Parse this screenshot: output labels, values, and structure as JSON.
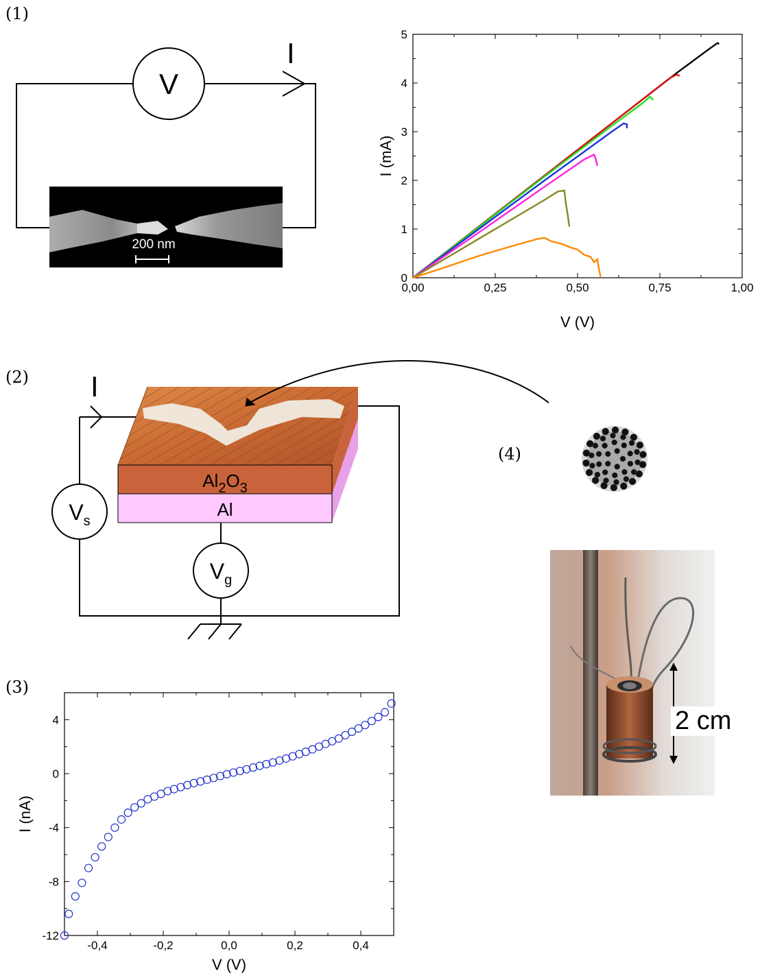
{
  "panel_labels": [
    "(1)",
    "(2)",
    "(3)",
    "(4)"
  ],
  "panel1_circuit": {
    "voltmeter": "V",
    "current": "I",
    "scale_bar": "200 nm"
  },
  "panel2_circuit": {
    "current": "I",
    "oxide": "Al2O3",
    "metal": "Al",
    "source": "Vs",
    "gate": "Vg"
  },
  "panel4": {
    "scale": "2 cm"
  },
  "colors": {
    "photo_bg": "#000000",
    "copper": "#c8633b",
    "al": "#ffc8ff",
    "markers": "#2233cc"
  },
  "chart_data": [
    {
      "type": "line",
      "xlabel": "V (V)",
      "ylabel": "I (mA)",
      "xlim": [
        0,
        1.0
      ],
      "ylim": [
        0,
        5
      ],
      "xticks": [
        "0,00",
        "0,25",
        "0,50",
        "0,75",
        "1,00"
      ],
      "yticks": [
        "0",
        "1",
        "2",
        "3",
        "4",
        "5"
      ],
      "grid": false,
      "series": [
        {
          "color": "#000000",
          "x": [
            0,
            0.2,
            0.4,
            0.6,
            0.8,
            0.9,
            0.925,
            0.93
          ],
          "y": [
            0,
            1.05,
            2.1,
            3.15,
            4.2,
            4.7,
            4.82,
            4.8
          ]
        },
        {
          "color": "#e01010",
          "x": [
            0,
            0.2,
            0.4,
            0.6,
            0.78,
            0.8,
            0.81
          ],
          "y": [
            0,
            1.05,
            2.1,
            3.15,
            4.1,
            4.17,
            4.15
          ]
        },
        {
          "color": "#22dd22",
          "x": [
            0,
            0.2,
            0.4,
            0.6,
            0.7,
            0.72,
            0.73
          ],
          "y": [
            0,
            1.04,
            2.08,
            3.1,
            3.6,
            3.72,
            3.65
          ]
        },
        {
          "color": "#1a33dd",
          "x": [
            0,
            0.2,
            0.4,
            0.6,
            0.64,
            0.65,
            0.65
          ],
          "y": [
            0,
            1.0,
            2.0,
            2.98,
            3.17,
            3.15,
            3.07
          ]
        },
        {
          "color": "#ff22dd",
          "x": [
            0,
            0.2,
            0.4,
            0.52,
            0.55,
            0.555,
            0.56
          ],
          "y": [
            0,
            0.93,
            1.87,
            2.43,
            2.53,
            2.45,
            2.3
          ]
        },
        {
          "color": "#888822",
          "x": [
            0,
            0.2,
            0.4,
            0.44,
            0.46,
            0.465,
            0.47,
            0.475
          ],
          "y": [
            0,
            0.8,
            1.6,
            1.77,
            1.79,
            1.5,
            1.3,
            1.05
          ]
        },
        {
          "color": "#ff8800",
          "x": [
            0,
            0.1,
            0.2,
            0.3,
            0.38,
            0.4,
            0.42,
            0.45,
            0.48,
            0.5,
            0.52,
            0.54,
            0.55,
            0.56,
            0.565,
            0.57
          ],
          "y": [
            0,
            0.22,
            0.45,
            0.65,
            0.8,
            0.82,
            0.75,
            0.7,
            0.62,
            0.58,
            0.47,
            0.43,
            0.32,
            0.38,
            0.18,
            0.02
          ]
        }
      ]
    },
    {
      "type": "scatter",
      "xlabel": "V (V)",
      "ylabel": "I (nA)",
      "xlim": [
        -0.5,
        0.5
      ],
      "ylim": [
        -12,
        6
      ],
      "xticks": [
        "-0,4",
        "-0,2",
        "0,0",
        "0,2",
        "0,4"
      ],
      "yticks": [
        "4",
        "0",
        "-4",
        "-8",
        "-12"
      ],
      "grid": false,
      "series": [
        {
          "color": "#2233cc",
          "x": [
            -0.5,
            -0.487,
            -0.467,
            -0.447,
            -0.427,
            -0.407,
            -0.387,
            -0.367,
            -0.347,
            -0.327,
            -0.307,
            -0.287,
            -0.267,
            -0.247,
            -0.227,
            -0.207,
            -0.187,
            -0.167,
            -0.147,
            -0.127,
            -0.107,
            -0.087,
            -0.067,
            -0.047,
            -0.027,
            -0.007,
            0.013,
            0.033,
            0.053,
            0.073,
            0.093,
            0.113,
            0.133,
            0.153,
            0.173,
            0.193,
            0.213,
            0.233,
            0.253,
            0.273,
            0.293,
            0.313,
            0.333,
            0.353,
            0.373,
            0.393,
            0.413,
            0.433,
            0.453,
            0.473,
            0.493
          ],
          "y": [
            -12,
            -10.4,
            -9.1,
            -8.1,
            -7.0,
            -6.2,
            -5.4,
            -4.7,
            -4.0,
            -3.4,
            -2.9,
            -2.5,
            -2.2,
            -1.9,
            -1.7,
            -1.5,
            -1.3,
            -1.15,
            -1.0,
            -0.85,
            -0.7,
            -0.58,
            -0.45,
            -0.32,
            -0.18,
            -0.05,
            0.08,
            0.2,
            0.32,
            0.45,
            0.58,
            0.7,
            0.83,
            0.97,
            1.12,
            1.28,
            1.45,
            1.62,
            1.8,
            2.0,
            2.2,
            2.4,
            2.6,
            2.85,
            3.1,
            3.35,
            3.6,
            3.9,
            4.2,
            4.55,
            5.2
          ]
        }
      ]
    }
  ]
}
